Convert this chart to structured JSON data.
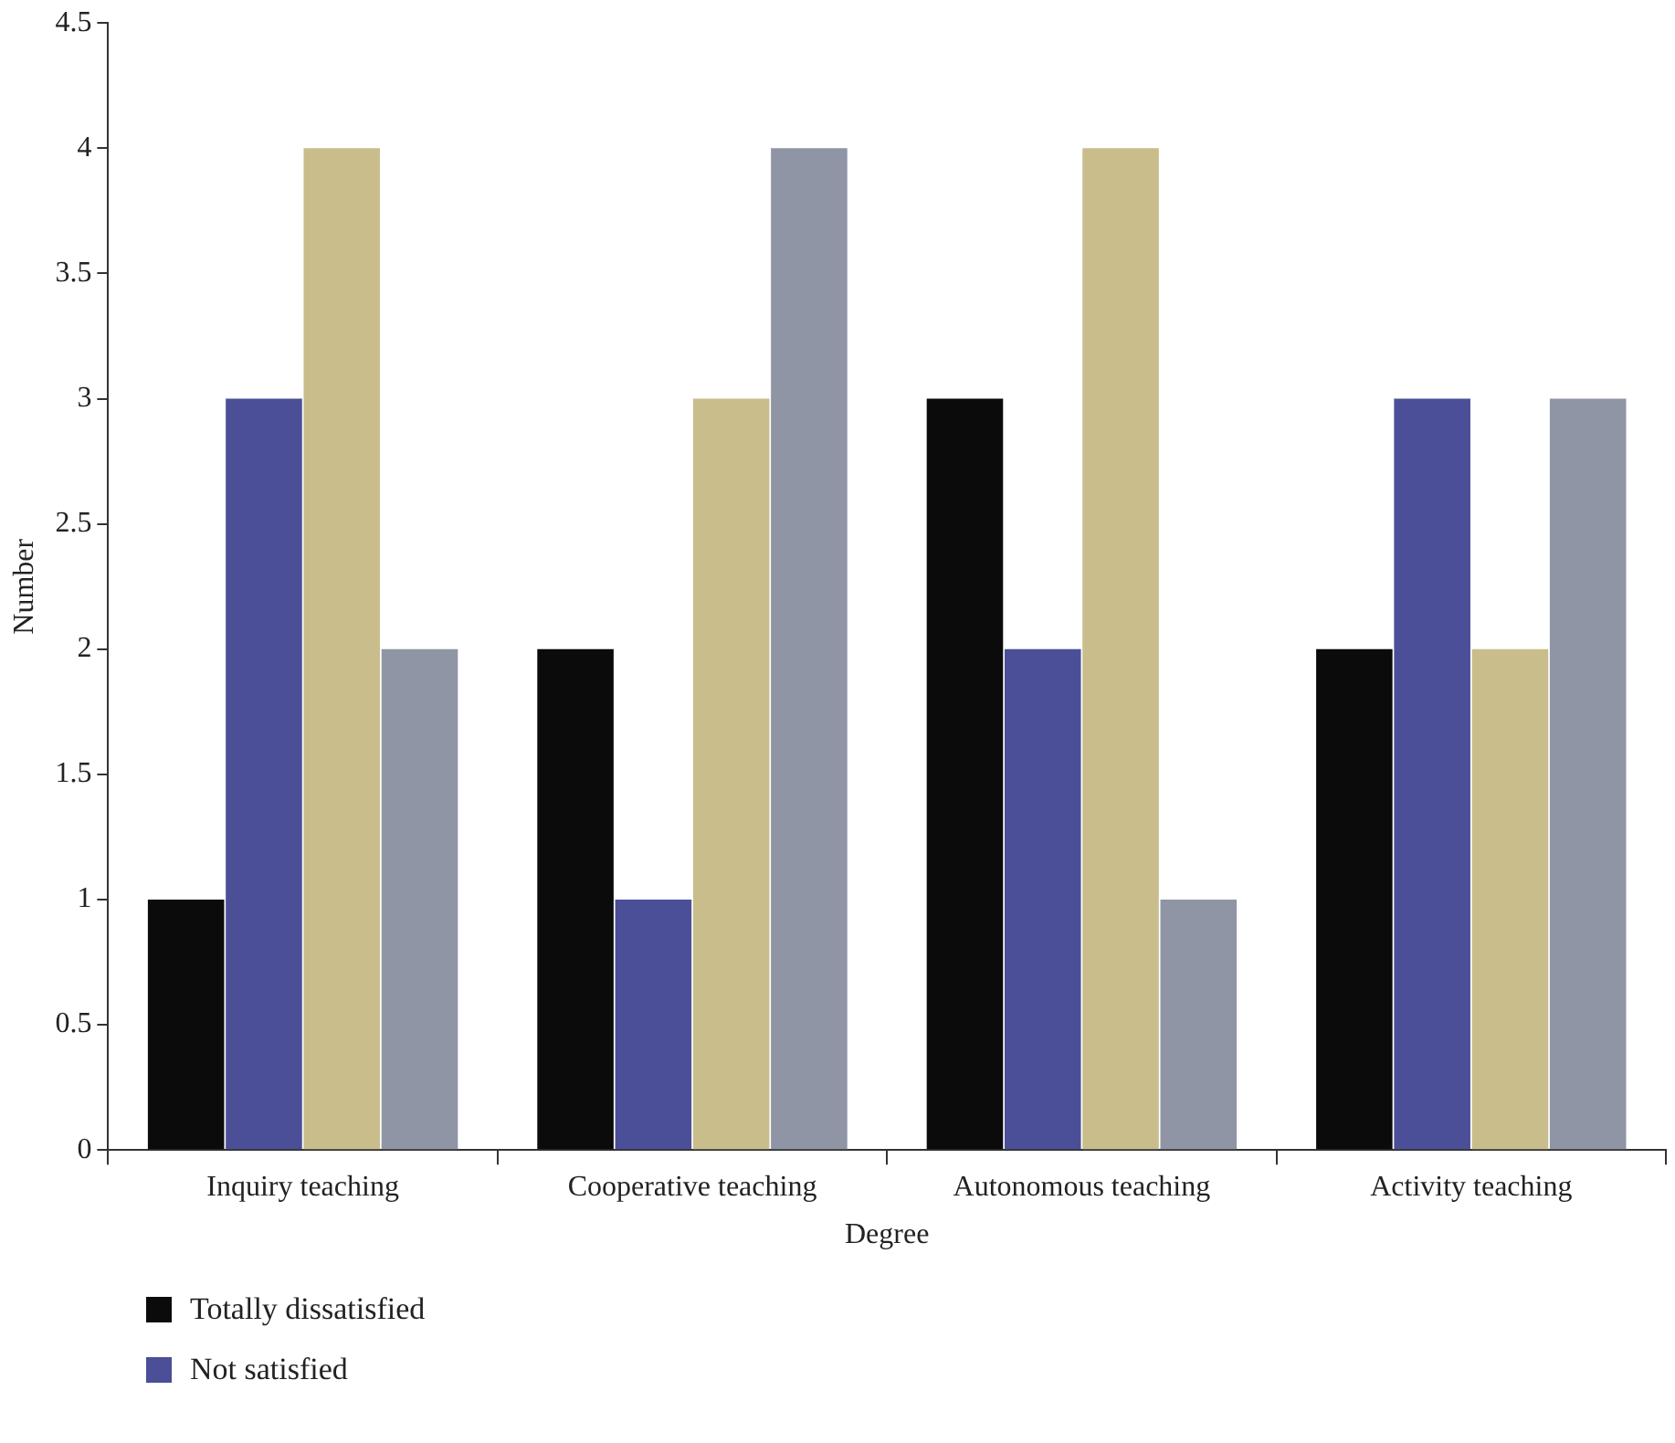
{
  "chart_data": {
    "type": "bar",
    "xlabel": "Degree",
    "ylabel": "Number",
    "categories": [
      "Inquiry teaching",
      "Cooperative teaching",
      "Autonomous teaching",
      "Activity teaching"
    ],
    "series": [
      {
        "name": "Totally dissatisfied",
        "color": "#0b0b0b",
        "values": [
          1,
          2,
          3,
          2
        ]
      },
      {
        "name": "Not satisfied",
        "color": "#4b4f98",
        "values": [
          3,
          1,
          2,
          3
        ]
      },
      {
        "color": "#c9bd8c",
        "values": [
          4,
          3,
          4,
          2
        ]
      },
      {
        "color": "#8f95a5",
        "values": [
          2,
          4,
          1,
          3
        ]
      }
    ],
    "ylim": [
      0,
      4.5
    ],
    "yticks": [
      0,
      0.5,
      1,
      1.5,
      2,
      2.5,
      3,
      3.5,
      4,
      4.5
    ],
    "grid": false,
    "legend": "bottom left"
  }
}
